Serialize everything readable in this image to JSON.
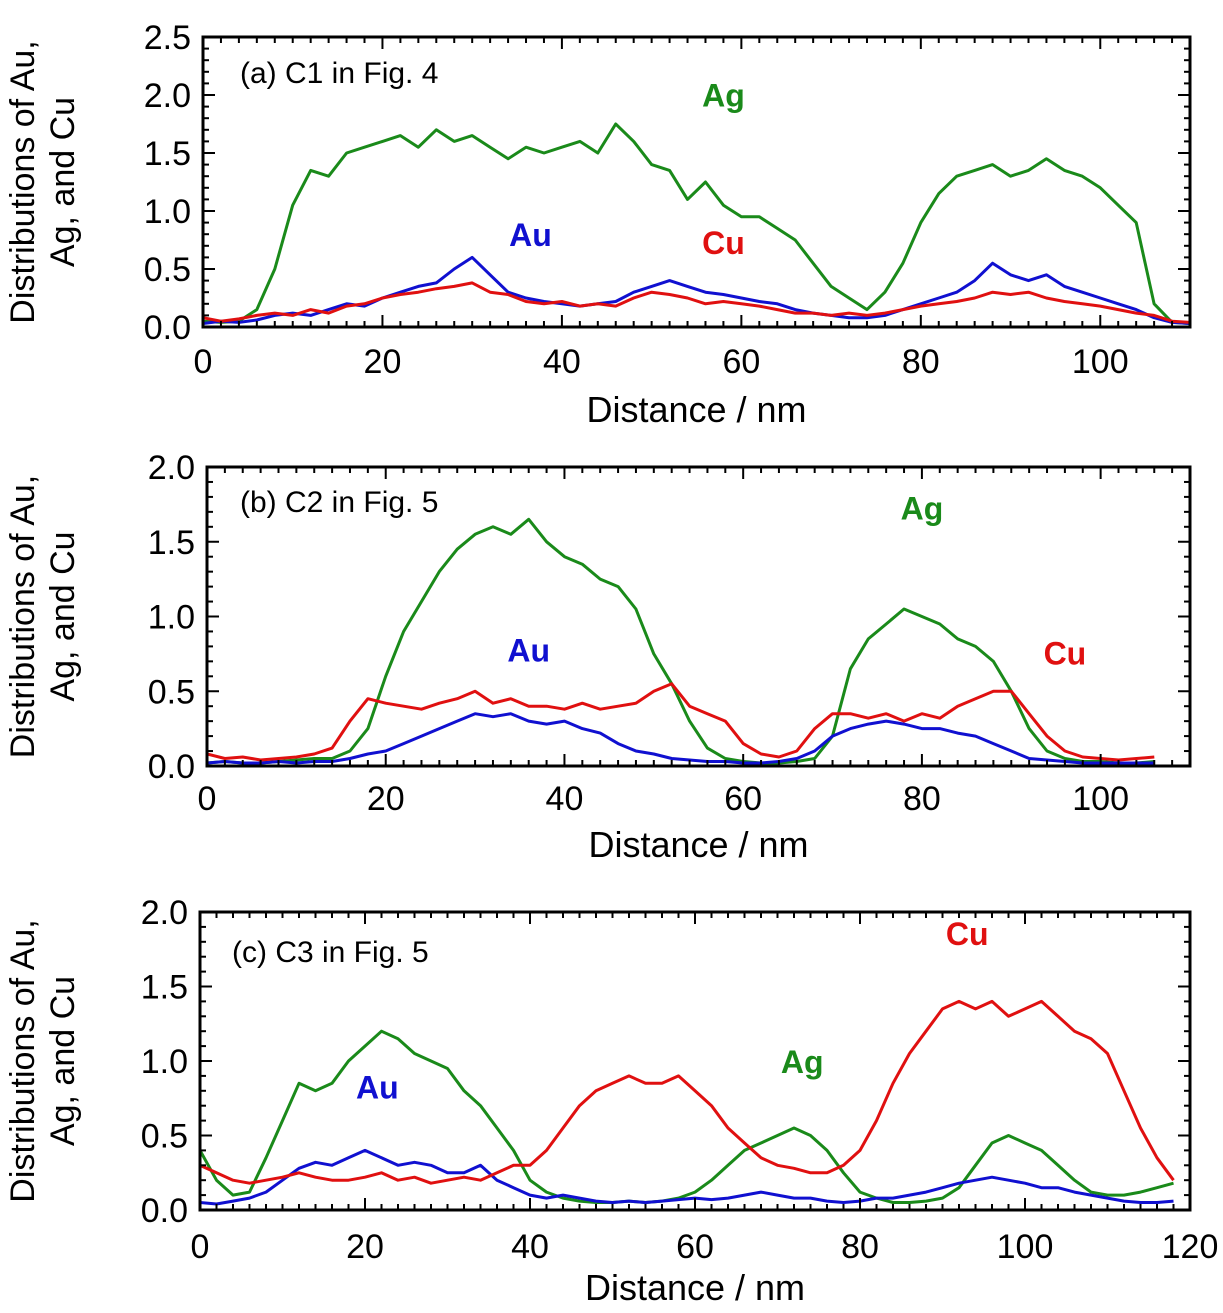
{
  "colors": {
    "Ag": "#1a8a1a",
    "Au": "#1010d0",
    "Cu": "#e01010",
    "axis": "#000000"
  },
  "chart_data": [
    {
      "type": "line",
      "panel_label": "(a)  C1 in Fig. 4",
      "xlabel": "Distance / nm",
      "ylabel_line1": "Distributions of Au,",
      "ylabel_line2": "Ag, and Cu",
      "xlim": [
        0,
        110
      ],
      "ylim": [
        0,
        2.5
      ],
      "x_ticks": [
        "0",
        "20",
        "40",
        "60",
        "80",
        "100"
      ],
      "y_ticks": [
        "0.0",
        "0.5",
        "1.0",
        "1.5",
        "2.0",
        "2.5"
      ],
      "grid": false,
      "x": [
        0,
        2,
        4,
        6,
        8,
        10,
        12,
        14,
        16,
        18,
        20,
        22,
        24,
        26,
        28,
        30,
        32,
        34,
        36,
        38,
        40,
        42,
        44,
        46,
        48,
        50,
        52,
        54,
        56,
        58,
        60,
        62,
        64,
        66,
        68,
        70,
        72,
        74,
        76,
        78,
        80,
        82,
        84,
        86,
        88,
        90,
        92,
        94,
        96,
        98,
        100,
        102,
        104,
        106,
        108,
        110
      ],
      "series": [
        {
          "name": "Ag",
          "label_pos": [
            58,
            1.9
          ],
          "values": [
            0.05,
            0.04,
            0.05,
            0.15,
            0.5,
            1.05,
            1.35,
            1.3,
            1.5,
            1.55,
            1.6,
            1.65,
            1.55,
            1.7,
            1.6,
            1.65,
            1.55,
            1.45,
            1.55,
            1.5,
            1.55,
            1.6,
            1.5,
            1.75,
            1.6,
            1.4,
            1.35,
            1.1,
            1.25,
            1.05,
            0.95,
            0.95,
            0.85,
            0.75,
            0.55,
            0.35,
            0.25,
            0.15,
            0.3,
            0.55,
            0.9,
            1.15,
            1.3,
            1.35,
            1.4,
            1.3,
            1.35,
            1.45,
            1.35,
            1.3,
            1.2,
            1.05,
            0.9,
            0.2,
            0.04,
            0.03
          ]
        },
        {
          "name": "Au",
          "label_pos": [
            36.5,
            0.7
          ],
          "values": [
            0.03,
            0.05,
            0.04,
            0.06,
            0.1,
            0.12,
            0.1,
            0.15,
            0.2,
            0.18,
            0.25,
            0.3,
            0.35,
            0.38,
            0.5,
            0.6,
            0.45,
            0.3,
            0.25,
            0.22,
            0.2,
            0.18,
            0.2,
            0.22,
            0.3,
            0.35,
            0.4,
            0.35,
            0.3,
            0.28,
            0.25,
            0.22,
            0.2,
            0.15,
            0.12,
            0.1,
            0.08,
            0.08,
            0.1,
            0.15,
            0.2,
            0.25,
            0.3,
            0.4,
            0.55,
            0.45,
            0.4,
            0.45,
            0.35,
            0.3,
            0.25,
            0.2,
            0.15,
            0.08,
            0.04,
            0.03
          ]
        },
        {
          "name": "Cu",
          "label_pos": [
            58,
            0.63
          ],
          "values": [
            0.08,
            0.05,
            0.07,
            0.1,
            0.12,
            0.1,
            0.15,
            0.12,
            0.18,
            0.2,
            0.25,
            0.28,
            0.3,
            0.33,
            0.35,
            0.38,
            0.3,
            0.28,
            0.22,
            0.2,
            0.22,
            0.18,
            0.2,
            0.18,
            0.25,
            0.3,
            0.28,
            0.25,
            0.2,
            0.22,
            0.2,
            0.18,
            0.15,
            0.12,
            0.12,
            0.1,
            0.12,
            0.1,
            0.12,
            0.15,
            0.18,
            0.2,
            0.22,
            0.25,
            0.3,
            0.28,
            0.3,
            0.25,
            0.22,
            0.2,
            0.18,
            0.15,
            0.12,
            0.1,
            0.05,
            0.04
          ]
        }
      ]
    },
    {
      "type": "line",
      "panel_label": "(b)  C2 in Fig. 5",
      "xlabel": "Distance / nm",
      "ylabel_line1": "Distributions of Au,",
      "ylabel_line2": "Ag, and Cu",
      "xlim": [
        0,
        110
      ],
      "ylim": [
        0,
        2.0
      ],
      "x_ticks": [
        "0",
        "20",
        "40",
        "60",
        "80",
        "100"
      ],
      "y_ticks": [
        "0.0",
        "0.5",
        "1.0",
        "1.5",
        "2.0"
      ],
      "grid": false,
      "x": [
        0,
        2,
        4,
        6,
        8,
        10,
        12,
        14,
        16,
        18,
        20,
        22,
        24,
        26,
        28,
        30,
        32,
        34,
        36,
        38,
        40,
        42,
        44,
        46,
        48,
        50,
        52,
        54,
        56,
        58,
        60,
        62,
        64,
        66,
        68,
        70,
        72,
        74,
        76,
        78,
        80,
        82,
        84,
        86,
        88,
        90,
        92,
        94,
        96,
        98,
        100,
        102,
        104,
        106
      ],
      "series": [
        {
          "name": "Ag",
          "label_pos": [
            80,
            1.65
          ],
          "values": [
            0.02,
            0.03,
            0.02,
            0.02,
            0.03,
            0.04,
            0.05,
            0.05,
            0.1,
            0.25,
            0.6,
            0.9,
            1.1,
            1.3,
            1.45,
            1.55,
            1.6,
            1.55,
            1.65,
            1.5,
            1.4,
            1.35,
            1.25,
            1.2,
            1.05,
            0.75,
            0.55,
            0.3,
            0.12,
            0.05,
            0.03,
            0.02,
            0.02,
            0.03,
            0.05,
            0.2,
            0.65,
            0.85,
            0.95,
            1.05,
            1.0,
            0.95,
            0.85,
            0.8,
            0.7,
            0.5,
            0.25,
            0.1,
            0.05,
            0.03,
            0.03,
            0.02,
            0.02,
            0.03
          ]
        },
        {
          "name": "Au",
          "label_pos": [
            36,
            0.7
          ],
          "values": [
            0.02,
            0.03,
            0.02,
            0.02,
            0.03,
            0.02,
            0.03,
            0.03,
            0.05,
            0.08,
            0.1,
            0.15,
            0.2,
            0.25,
            0.3,
            0.35,
            0.33,
            0.35,
            0.3,
            0.28,
            0.3,
            0.25,
            0.22,
            0.15,
            0.1,
            0.08,
            0.05,
            0.04,
            0.03,
            0.03,
            0.02,
            0.02,
            0.03,
            0.05,
            0.1,
            0.2,
            0.25,
            0.28,
            0.3,
            0.28,
            0.25,
            0.25,
            0.22,
            0.2,
            0.15,
            0.1,
            0.05,
            0.04,
            0.03,
            0.02,
            0.02,
            0.02,
            0.02,
            0.02
          ]
        },
        {
          "name": "Cu",
          "label_pos": [
            96,
            0.68
          ],
          "values": [
            0.08,
            0.05,
            0.06,
            0.04,
            0.05,
            0.06,
            0.08,
            0.12,
            0.3,
            0.45,
            0.42,
            0.4,
            0.38,
            0.42,
            0.45,
            0.5,
            0.42,
            0.45,
            0.4,
            0.4,
            0.38,
            0.42,
            0.38,
            0.4,
            0.42,
            0.5,
            0.55,
            0.4,
            0.35,
            0.3,
            0.15,
            0.08,
            0.06,
            0.1,
            0.25,
            0.35,
            0.35,
            0.32,
            0.35,
            0.3,
            0.35,
            0.32,
            0.4,
            0.45,
            0.5,
            0.5,
            0.35,
            0.2,
            0.1,
            0.06,
            0.05,
            0.04,
            0.05,
            0.06
          ]
        }
      ]
    },
    {
      "type": "line",
      "panel_label": "(c)  C3 in Fig. 5",
      "xlabel": "Distance / nm",
      "ylabel_line1": "Distributions of Au,",
      "ylabel_line2": "Ag, and Cu",
      "xlim": [
        0,
        120
      ],
      "ylim": [
        0,
        2.0
      ],
      "x_ticks": [
        "0",
        "20",
        "40",
        "60",
        "80",
        "100",
        "120"
      ],
      "y_ticks": [
        "0.0",
        "0.5",
        "1.0",
        "1.5",
        "2.0"
      ],
      "grid": false,
      "x": [
        0,
        2,
        4,
        6,
        8,
        10,
        12,
        14,
        16,
        18,
        20,
        22,
        24,
        26,
        28,
        30,
        32,
        34,
        36,
        38,
        40,
        42,
        44,
        46,
        48,
        50,
        52,
        54,
        56,
        58,
        60,
        62,
        64,
        66,
        68,
        70,
        72,
        74,
        76,
        78,
        80,
        82,
        84,
        86,
        88,
        90,
        92,
        94,
        96,
        98,
        100,
        102,
        104,
        106,
        108,
        110,
        112,
        114,
        116,
        118
      ],
      "series": [
        {
          "name": "Ag",
          "label_pos": [
            73,
            0.92
          ],
          "values": [
            0.4,
            0.2,
            0.1,
            0.12,
            0.35,
            0.6,
            0.85,
            0.8,
            0.85,
            1.0,
            1.1,
            1.2,
            1.15,
            1.05,
            1.0,
            0.95,
            0.8,
            0.7,
            0.55,
            0.4,
            0.2,
            0.12,
            0.08,
            0.06,
            0.05,
            0.05,
            0.06,
            0.05,
            0.06,
            0.08,
            0.12,
            0.2,
            0.3,
            0.4,
            0.45,
            0.5,
            0.55,
            0.5,
            0.4,
            0.25,
            0.12,
            0.08,
            0.05,
            0.05,
            0.06,
            0.08,
            0.15,
            0.3,
            0.45,
            0.5,
            0.45,
            0.4,
            0.3,
            0.2,
            0.12,
            0.1,
            0.1,
            0.12,
            0.15,
            0.18
          ]
        },
        {
          "name": "Au",
          "label_pos": [
            21.5,
            0.75
          ],
          "values": [
            0.05,
            0.04,
            0.06,
            0.08,
            0.12,
            0.2,
            0.28,
            0.32,
            0.3,
            0.35,
            0.4,
            0.35,
            0.3,
            0.32,
            0.3,
            0.25,
            0.25,
            0.3,
            0.2,
            0.15,
            0.1,
            0.08,
            0.1,
            0.08,
            0.06,
            0.05,
            0.06,
            0.05,
            0.06,
            0.07,
            0.08,
            0.07,
            0.08,
            0.1,
            0.12,
            0.1,
            0.08,
            0.08,
            0.06,
            0.05,
            0.06,
            0.08,
            0.08,
            0.1,
            0.12,
            0.15,
            0.18,
            0.2,
            0.22,
            0.2,
            0.18,
            0.15,
            0.15,
            0.12,
            0.1,
            0.08,
            0.06,
            0.05,
            0.05,
            0.06
          ]
        },
        {
          "name": "Cu",
          "label_pos": [
            93,
            1.78
          ],
          "values": [
            0.3,
            0.25,
            0.2,
            0.18,
            0.2,
            0.22,
            0.25,
            0.22,
            0.2,
            0.2,
            0.22,
            0.25,
            0.2,
            0.22,
            0.18,
            0.2,
            0.22,
            0.2,
            0.25,
            0.3,
            0.3,
            0.4,
            0.55,
            0.7,
            0.8,
            0.85,
            0.9,
            0.85,
            0.85,
            0.9,
            0.8,
            0.7,
            0.55,
            0.45,
            0.35,
            0.3,
            0.28,
            0.25,
            0.25,
            0.3,
            0.4,
            0.6,
            0.85,
            1.05,
            1.2,
            1.35,
            1.4,
            1.35,
            1.4,
            1.3,
            1.35,
            1.4,
            1.3,
            1.2,
            1.15,
            1.05,
            0.8,
            0.55,
            0.35,
            0.2
          ]
        }
      ]
    }
  ]
}
